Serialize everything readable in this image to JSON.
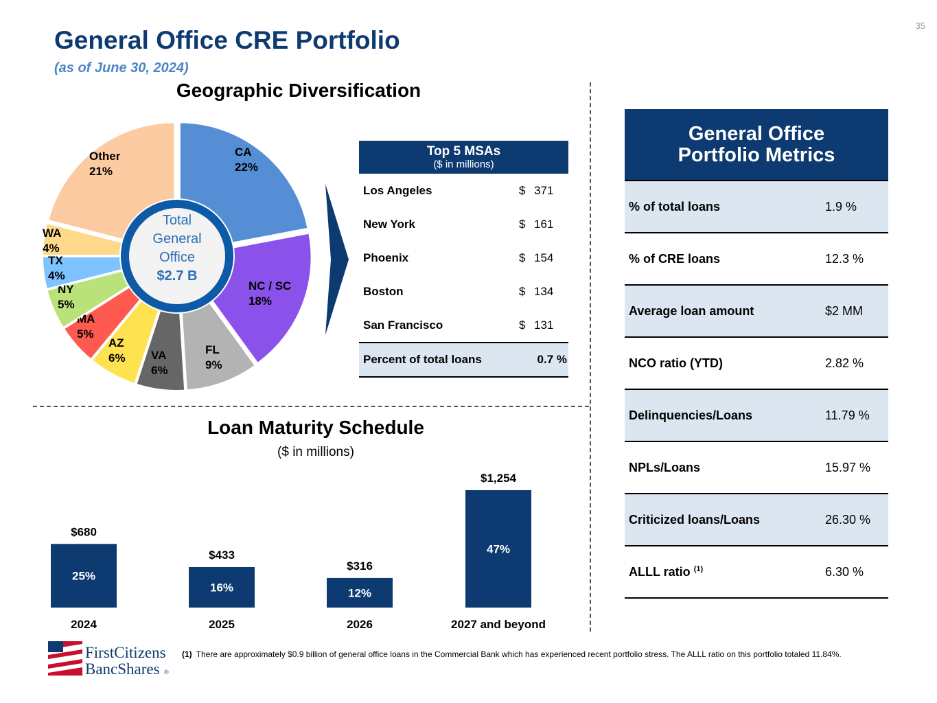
{
  "page_number": "35",
  "title": "General Office CRE Portfolio",
  "subtitle": "(as of June 30, 2024)",
  "colors": {
    "navy": "#0d3a70",
    "light_blue_shade": "#dce6f1",
    "accent_blue": "#4d86c6"
  },
  "geo": {
    "title": "Geographic Diversification",
    "center_label": [
      "Total",
      "General",
      "Office"
    ],
    "center_value": "$2.7 B"
  },
  "msa": {
    "title": "Top 5 MSAs",
    "units": "($ in millions)",
    "rows": [
      {
        "name": "Los Angeles",
        "currency": "$",
        "value": "371"
      },
      {
        "name": "New York",
        "currency": "$",
        "value": "161"
      },
      {
        "name": "Phoenix",
        "currency": "$",
        "value": "154"
      },
      {
        "name": "Boston",
        "currency": "$",
        "value": "134"
      },
      {
        "name": "San Francisco",
        "currency": "$",
        "value": "131"
      }
    ],
    "total_label": "Percent of total loans",
    "total_value": "0.7 %"
  },
  "metrics": {
    "title_line1": "General Office",
    "title_line2": "Portfolio Metrics",
    "rows": [
      {
        "label": "% of total loans",
        "value": "1.9 %"
      },
      {
        "label": "% of CRE loans",
        "value": "12.3 %"
      },
      {
        "label": "Average loan amount",
        "value": "$2 MM"
      },
      {
        "label": "NCO ratio (YTD)",
        "value": "2.82 %"
      },
      {
        "label": "Delinquencies/Loans",
        "value": "11.79 %"
      },
      {
        "label": "NPLs/Loans",
        "value": "15.97 %"
      },
      {
        "label": "Criticized loans/Loans",
        "value": "26.30 %"
      },
      {
        "label": "ALLL ratio",
        "sup": "(1)",
        "value": "6.30 %"
      }
    ]
  },
  "maturity": {
    "title": "Loan Maturity Schedule",
    "units": "($ in millions)"
  },
  "footnote": {
    "marker": "(1)",
    "text": "There are approximately $0.9 billion of general office loans in the Commercial Bank which has experienced recent portfolio stress. The ALLL ratio on this portfolio totaled 11.84%."
  },
  "logo": {
    "line1": "FirstCitizens",
    "line2": "BancShares",
    "mark": "®"
  },
  "chart_data": [
    {
      "type": "pie",
      "title": "Geographic Diversification",
      "slices": [
        {
          "label": "CA",
          "pct_label": "22%",
          "value": 22,
          "color": "#558ed5"
        },
        {
          "label": "NC / SC",
          "pct_label": "18%",
          "value": 18,
          "color": "#8a52ea"
        },
        {
          "label": "FL",
          "pct_label": "9%",
          "value": 9,
          "color": "#b3b3b3"
        },
        {
          "label": "VA",
          "pct_label": "6%",
          "value": 6,
          "color": "#666666"
        },
        {
          "label": "AZ",
          "pct_label": "6%",
          "value": 6,
          "color": "#ffe24f"
        },
        {
          "label": "MA",
          "pct_label": "5%",
          "value": 5,
          "color": "#ff5a4f"
        },
        {
          "label": "NY",
          "pct_label": "5%",
          "value": 5,
          "color": "#b9e27a"
        },
        {
          "label": "TX",
          "pct_label": "4%",
          "value": 4,
          "color": "#7cc3ff"
        },
        {
          "label": "WA",
          "pct_label": "4%",
          "value": 4,
          "color": "#ffd98a"
        },
        {
          "label": "Other",
          "pct_label": "21%",
          "value": 21,
          "color": "#fdcba2"
        }
      ]
    },
    {
      "type": "bar",
      "title": "Loan Maturity Schedule",
      "units": "($ in millions)",
      "categories": [
        "2024",
        "2025",
        "2026",
        "2027 and beyond"
      ],
      "values": [
        680,
        433,
        316,
        1254
      ],
      "value_labels": [
        "$680",
        "$433",
        "$316",
        "$1,254"
      ],
      "pct_labels": [
        "25%",
        "16%",
        "12%",
        "47%"
      ],
      "color": "#0d3a70"
    }
  ]
}
